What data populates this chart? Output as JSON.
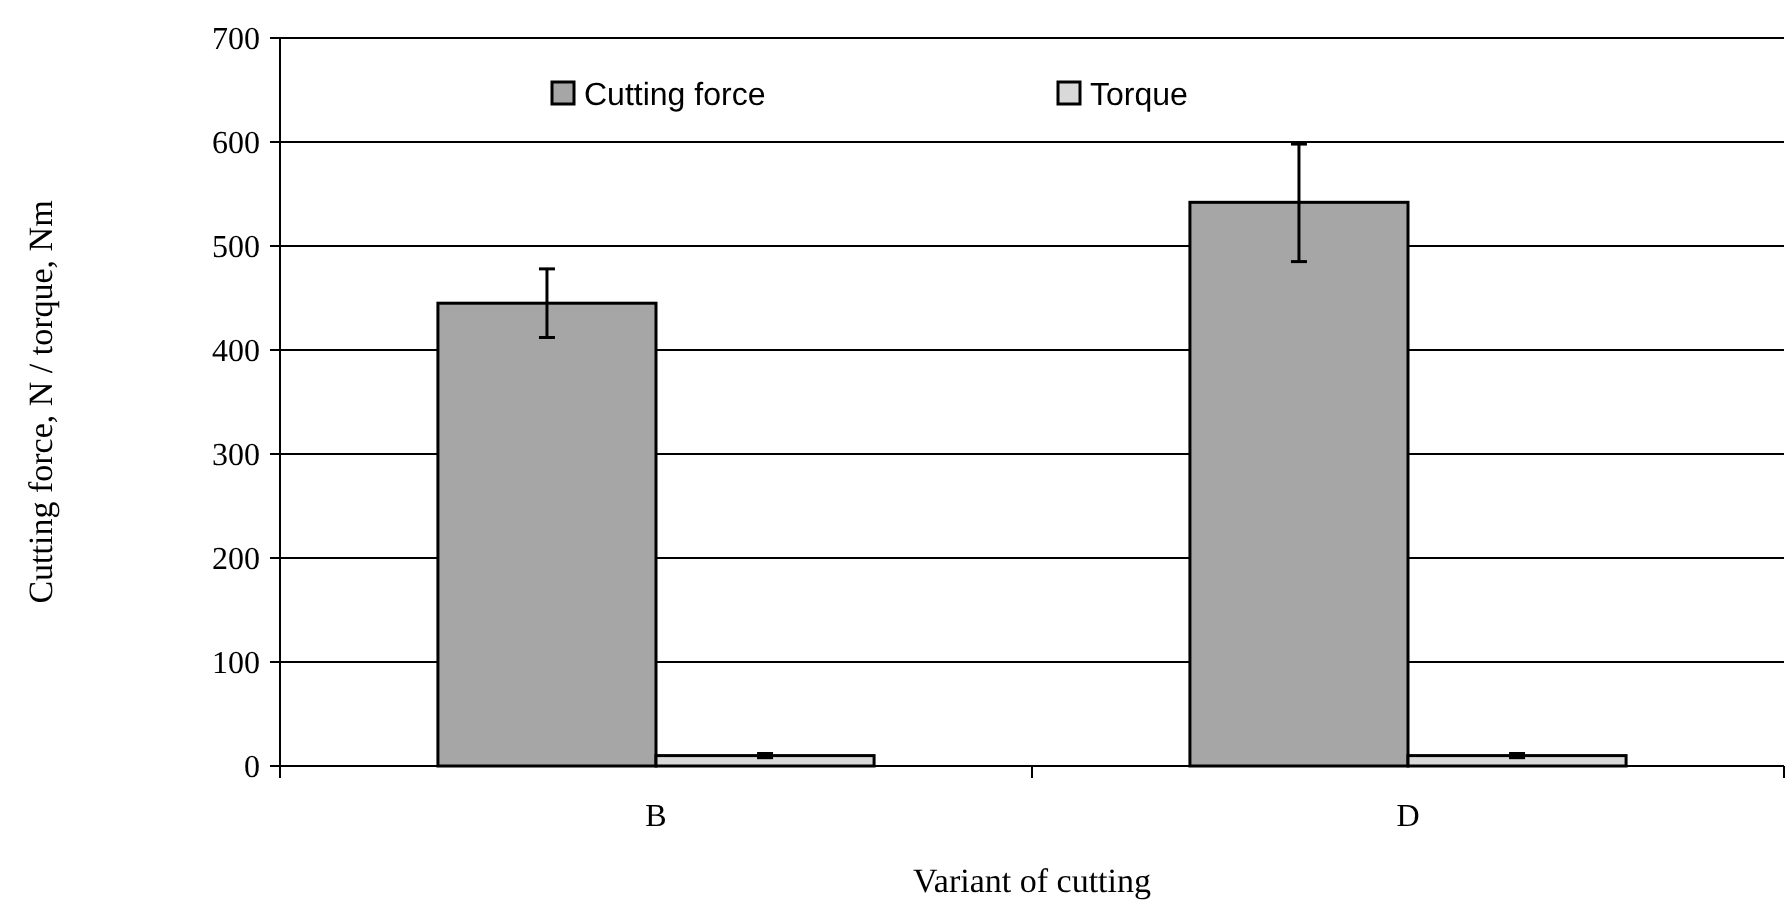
{
  "chart_data": {
    "type": "bar",
    "xlabel": "Variant of cutting",
    "ylabel": "Cutting force, N / torque, Nm",
    "categories": [
      "B",
      "D"
    ],
    "series": [
      {
        "name": "Cutting force",
        "color": "#a6a6a6",
        "values": [
          445,
          542
        ],
        "errors": [
          [
            412,
            478
          ],
          [
            485,
            598
          ]
        ]
      },
      {
        "name": "Torque",
        "color": "#d9d9d9",
        "values": [
          10,
          10
        ],
        "errors": [
          2,
          2
        ]
      }
    ],
    "ylim": [
      0,
      700
    ],
    "yticks": [
      0,
      100,
      200,
      300,
      400,
      500,
      600,
      700
    ],
    "grid": "y",
    "legend": "top"
  }
}
